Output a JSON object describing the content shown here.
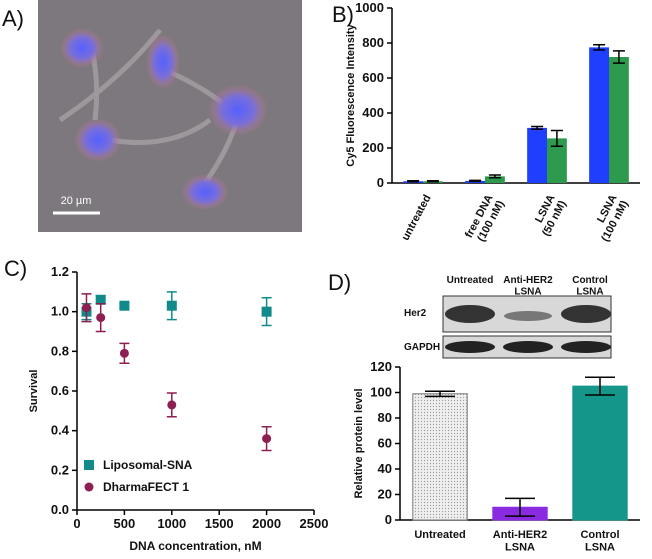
{
  "panels": {
    "a": "A)",
    "b": "B)",
    "c": "C)",
    "d": "D)"
  },
  "image": {
    "scale_bar": "20 µm"
  },
  "blot": {
    "columns": [
      "Untreated",
      "Anti-HER2\nLSNA",
      "Control\nLSNA"
    ],
    "rows": [
      "Her2",
      "GAPDH"
    ]
  },
  "chart_data": [
    {
      "type": "bar",
      "ylabel": "Cy5 Fluorescence Intensity",
      "categories": [
        "untreated",
        "free DNA\n(100 nM)",
        "LSNA\n(50 nM)",
        "LSNA\n(100 nM)"
      ],
      "series": [
        {
          "color": "#1f3fff",
          "values": [
            10,
            12,
            315,
            775
          ],
          "errors": [
            3,
            3,
            8,
            15
          ]
        },
        {
          "color": "#2e9a4e",
          "values": [
            10,
            38,
            255,
            720
          ],
          "errors": [
            3,
            8,
            45,
            35
          ]
        }
      ],
      "ylim": [
        0,
        1000
      ],
      "yticks": [
        0,
        200,
        400,
        600,
        800,
        1000
      ]
    },
    {
      "type": "scatter",
      "xlabel": "DNA concentration, nM",
      "ylabel": "Survival",
      "series": [
        {
          "name": "Liposomal-SNA",
          "color": "#138a8a",
          "marker": "square",
          "x": [
            100,
            250,
            500,
            1000,
            2000
          ],
          "values": [
            1.0,
            1.06,
            1.03,
            1.03,
            1.0
          ],
          "errors": [
            0.04,
            0.02,
            0.01,
            0.07,
            0.07
          ]
        },
        {
          "name": "DharmaFECT 1",
          "color": "#8e1f52",
          "marker": "circle",
          "x": [
            100,
            250,
            500,
            1000,
            2000
          ],
          "values": [
            1.02,
            0.97,
            0.79,
            0.53,
            0.36
          ],
          "errors": [
            0.07,
            0.07,
            0.05,
            0.06,
            0.06
          ]
        }
      ],
      "xlim": [
        0,
        2500
      ],
      "xticks": [
        0,
        500,
        1000,
        1500,
        2000,
        2500
      ],
      "ylim": [
        0,
        1.2
      ],
      "yticks": [
        {
          "value": 0,
          "label": "0.0"
        },
        0.2,
        0.4,
        0.6,
        0.8,
        {
          "value": 1,
          "label": "1.0"
        },
        1.2
      ],
      "legend": "lower left"
    },
    {
      "type": "bar",
      "ylabel": "Relative protein level",
      "categories": [
        "Untreated",
        "Anti-HER2\nLSNA",
        "Control\nLSNA"
      ],
      "values": [
        99,
        10,
        105
      ],
      "errors": [
        2,
        7,
        7
      ],
      "colors": [
        "#e3e3e3",
        "#8a2be2",
        "#14968a"
      ],
      "ylim": [
        0,
        120
      ],
      "yticks": [
        0,
        20,
        40,
        60,
        80,
        100,
        120
      ]
    }
  ]
}
